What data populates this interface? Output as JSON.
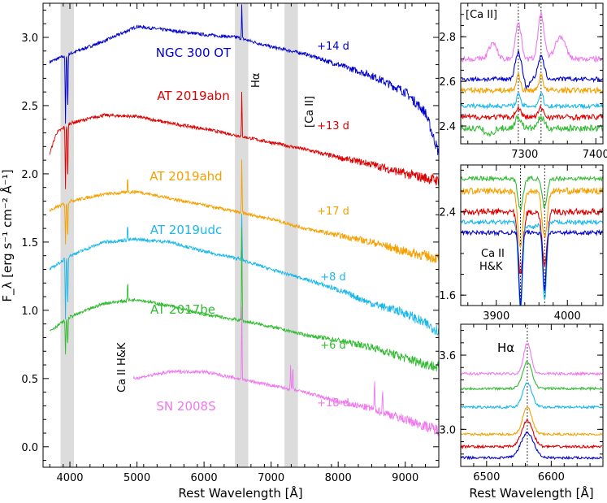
{
  "chart_data": [
    {
      "type": "line",
      "panel": "main",
      "xlabel": "Rest Wavelength [Å]",
      "ylabel": "F_λ [erg s⁻¹ cm⁻² Å⁻¹]",
      "xlim": [
        3600,
        9500
      ],
      "ylim": [
        -0.15,
        3.25
      ],
      "xticks": [
        "4000",
        "5000",
        "6000",
        "7000",
        "8000",
        "9000"
      ],
      "yticks": [
        "0.0",
        "0.5",
        "1.0",
        "1.5",
        "2.0",
        "2.5",
        "3.0"
      ],
      "shaded_bands": [
        {
          "label": "Ca II H&K",
          "range": [
            3860,
            4060
          ]
        },
        {
          "label": "Hα",
          "range": [
            6460,
            6660
          ]
        },
        {
          "label": "[Ca II]",
          "range": [
            7200,
            7400
          ]
        }
      ],
      "series": [
        {
          "name": "NGC 300 OT",
          "epoch": "+14 d",
          "color": "#0000cc",
          "xrange": [
            3700,
            9500
          ],
          "level": [
            [
              3700,
              2.82
            ],
            [
              4000,
              2.88
            ],
            [
              4500,
              2.97
            ],
            [
              5000,
              3.08
            ],
            [
              5500,
              3.05
            ],
            [
              6000,
              3.02
            ],
            [
              6500,
              3.0
            ],
            [
              7000,
              2.93
            ],
            [
              7500,
              2.88
            ],
            [
              8000,
              2.8
            ],
            [
              8500,
              2.72
            ],
            [
              9000,
              2.6
            ],
            [
              9300,
              2.45
            ],
            [
              9500,
              2.15
            ]
          ],
          "lines": [
            [
              6563,
              0.25
            ]
          ],
          "absorption": [
            [
              3934,
              0.5
            ],
            [
              3968,
              0.4
            ]
          ]
        },
        {
          "name": "AT 2019abn",
          "epoch": "+13 d",
          "color": "#dd0000",
          "xrange": [
            3700,
            9500
          ],
          "level": [
            [
              3700,
              2.15
            ],
            [
              3800,
              2.3
            ],
            [
              4000,
              2.37
            ],
            [
              4500,
              2.43
            ],
            [
              5000,
              2.42
            ],
            [
              5500,
              2.37
            ],
            [
              6000,
              2.33
            ],
            [
              6500,
              2.28
            ],
            [
              7000,
              2.23
            ],
            [
              7500,
              2.18
            ],
            [
              8000,
              2.12
            ],
            [
              8500,
              2.07
            ],
            [
              9000,
              2.0
            ],
            [
              9500,
              1.95
            ]
          ],
          "lines": [
            [
              6563,
              0.33
            ]
          ],
          "absorption": [
            [
              3934,
              0.45
            ],
            [
              3968,
              0.4
            ]
          ]
        },
        {
          "name": "AT 2019ahd",
          "epoch": "+17 d",
          "color": "#f5a000",
          "xrange": [
            3700,
            9500
          ],
          "level": [
            [
              3700,
              1.73
            ],
            [
              4000,
              1.8
            ],
            [
              4500,
              1.85
            ],
            [
              5000,
              1.87
            ],
            [
              5500,
              1.82
            ],
            [
              6000,
              1.77
            ],
            [
              6500,
              1.72
            ],
            [
              7000,
              1.67
            ],
            [
              7500,
              1.6
            ],
            [
              8000,
              1.55
            ],
            [
              8500,
              1.5
            ],
            [
              9000,
              1.43
            ],
            [
              9500,
              1.38
            ]
          ],
          "lines": [
            [
              4861,
              0.12
            ],
            [
              6563,
              0.4
            ]
          ],
          "absorption": [
            [
              3934,
              0.3
            ],
            [
              3968,
              0.25
            ]
          ]
        },
        {
          "name": "AT 2019udc",
          "epoch": "+8 d",
          "color": "#1ab8ea",
          "xrange": [
            3700,
            9500
          ],
          "level": [
            [
              3700,
              1.3
            ],
            [
              4000,
              1.4
            ],
            [
              4500,
              1.5
            ],
            [
              5000,
              1.52
            ],
            [
              5500,
              1.5
            ],
            [
              6000,
              1.43
            ],
            [
              6500,
              1.38
            ],
            [
              7000,
              1.3
            ],
            [
              7500,
              1.23
            ],
            [
              8000,
              1.15
            ],
            [
              8500,
              1.05
            ],
            [
              9000,
              0.98
            ],
            [
              9500,
              0.85
            ]
          ],
          "lines": [
            [
              4861,
              0.12
            ],
            [
              6563,
              0.35
            ]
          ],
          "absorption": [
            [
              3934,
              0.45
            ],
            [
              3968,
              0.35
            ]
          ]
        },
        {
          "name": "AT 2017be",
          "epoch": "+6 d",
          "color": "#33bb33",
          "xrange": [
            3700,
            9500
          ],
          "level": [
            [
              3700,
              0.85
            ],
            [
              4000,
              0.95
            ],
            [
              4500,
              1.05
            ],
            [
              5000,
              1.08
            ],
            [
              5500,
              1.03
            ],
            [
              6000,
              0.97
            ],
            [
              6500,
              0.93
            ],
            [
              7000,
              0.88
            ],
            [
              7500,
              0.82
            ],
            [
              8000,
              0.78
            ],
            [
              8500,
              0.73
            ],
            [
              9000,
              0.65
            ],
            [
              9500,
              0.58
            ]
          ],
          "lines": [
            [
              4861,
              0.15
            ],
            [
              6563,
              0.7
            ]
          ],
          "absorption": [
            [
              3934,
              0.25
            ],
            [
              3968,
              0.2
            ]
          ]
        },
        {
          "name": "SN 2008S",
          "epoch": "+18 d",
          "color": "#ee77ee",
          "xrange": [
            4950,
            9500
          ],
          "level": [
            [
              4950,
              0.5
            ],
            [
              5500,
              0.55
            ],
            [
              6000,
              0.55
            ],
            [
              6500,
              0.5
            ],
            [
              7000,
              0.45
            ],
            [
              7500,
              0.4
            ],
            [
              8000,
              0.33
            ],
            [
              8500,
              0.28
            ],
            [
              9000,
              0.2
            ],
            [
              9500,
              0.12
            ]
          ],
          "lines": [
            [
              6563,
              0.55
            ],
            [
              7291,
              0.18
            ],
            [
              7323,
              0.18
            ],
            [
              8542,
              0.22
            ],
            [
              8662,
              0.18
            ]
          ],
          "absorption": []
        }
      ]
    },
    {
      "type": "line",
      "panel": "[Ca II]",
      "label": "[Ca II]",
      "xlim": [
        7210,
        7410
      ],
      "ylim": [
        2.32,
        2.95
      ],
      "xticks": [
        "7300",
        "7400"
      ],
      "yticks": [
        "2.4",
        "2.6",
        "2.8"
      ],
      "reference_lines": [
        7291,
        7323
      ]
    },
    {
      "type": "line",
      "panel": "Ca II H&K",
      "label": "Ca II\nH&K",
      "xlim": [
        3850,
        4050
      ],
      "ylim": [
        1.5,
        2.85
      ],
      "xticks": [
        "3900",
        "4000"
      ],
      "yticks": [
        "1.6",
        "2.4"
      ],
      "reference_lines": [
        3934,
        3968
      ]
    },
    {
      "type": "line",
      "panel": "Hα",
      "label": "Hα",
      "xlim": [
        6460,
        6680
      ],
      "ylim": [
        2.7,
        3.85
      ],
      "xlabel": "Rest Wavelength [Å]",
      "xticks": [
        "6500",
        "6600"
      ],
      "yticks": [
        "3.0",
        "3.6"
      ],
      "reference_lines": [
        6563
      ]
    }
  ],
  "labels": {
    "band_hk": "Ca II H&K",
    "band_ha": "Hα",
    "band_ca": "[Ca II]",
    "inset_ca": "[Ca II]",
    "inset_hk_line1": "Ca II",
    "inset_hk_line2": "H&K",
    "inset_ha": "Hα",
    "xlabel_main": "Rest Wavelength [Å]",
    "xlabel_right": "Rest Wavelength [Å]"
  }
}
